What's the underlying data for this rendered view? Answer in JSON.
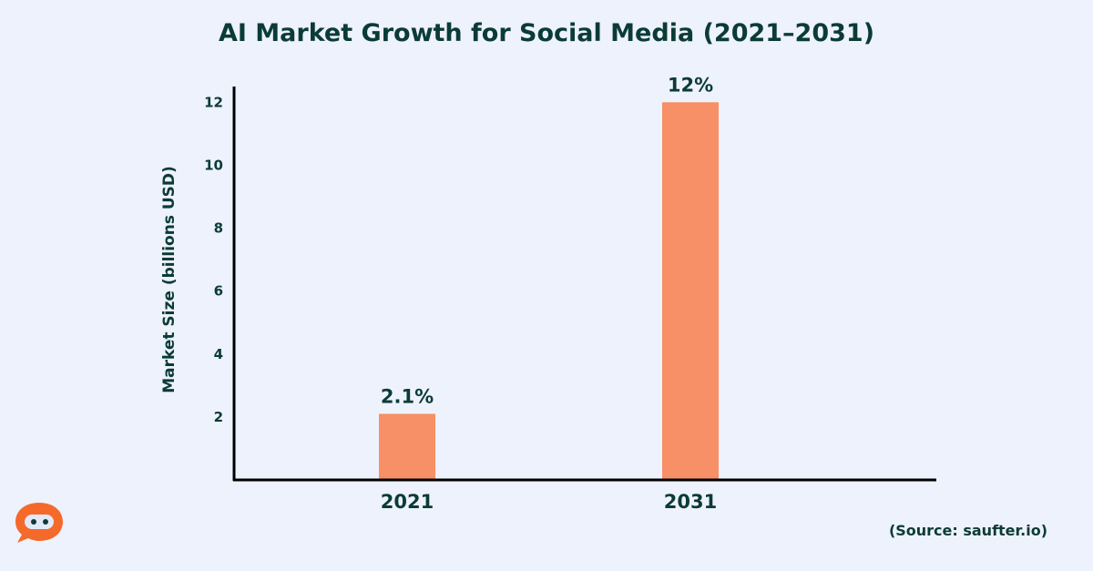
{
  "chart_data": {
    "type": "bar",
    "title": "AI Market Growth for Social Media (2021–2031)",
    "ylabel": "Market Size (billions USD)",
    "xlabel": "",
    "categories": [
      "2021",
      "2031"
    ],
    "values": [
      2.1,
      12
    ],
    "data_labels": [
      "2.1%",
      "12%"
    ],
    "yticks": [
      2,
      4,
      6,
      8,
      10,
      12
    ],
    "ylim": [
      0,
      12.5
    ],
    "grid": false,
    "bar_color": "#f79066"
  },
  "source": "(Source: saufter.io)",
  "logo_icon": "robot-chat-logo-icon"
}
